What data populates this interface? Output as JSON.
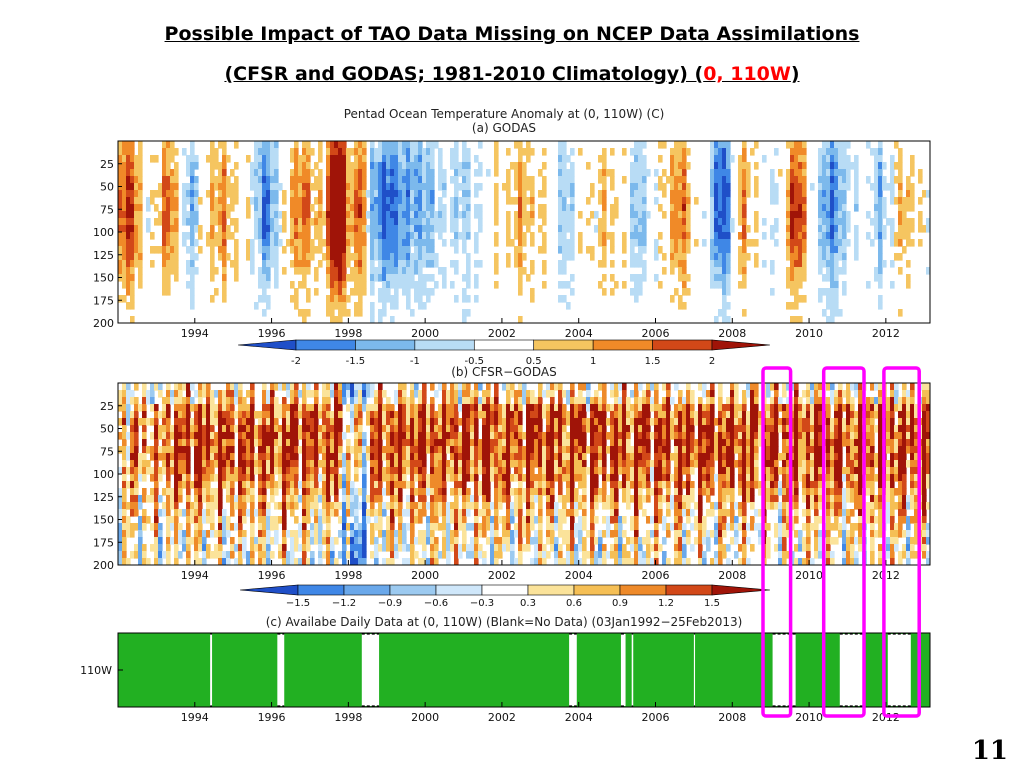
{
  "slide": {
    "title_line1": "Possible Impact of TAO Data Missing on NCEP Data Assimilations",
    "title_line2_prefix": "(CFSR and GODAS; 1981-2010 Climatology) (",
    "title_line2_highlight": "0, 110W",
    "title_line2_suffix": ")",
    "page_number": "11"
  },
  "figure": {
    "title": "Pentad Ocean Temperature Anomaly at (0, 110W) (C)"
  },
  "colors": {
    "highlight": "#ff00ff",
    "available_data": "#22b022",
    "title_accent": "#ff0000"
  },
  "chart_data": [
    {
      "type": "heatmap",
      "title": "(a) GODAS",
      "x_ticks": [
        "1994",
        "1996",
        "1998",
        "2000",
        "2002",
        "2004",
        "2006",
        "2008",
        "2010",
        "2012"
      ],
      "xlim": [
        1992.0,
        2013.15
      ],
      "y_ticks": [
        "25",
        "50",
        "75",
        "100",
        "125",
        "150",
        "175",
        "200"
      ],
      "ylim": [
        0,
        200
      ],
      "y_inverted": true,
      "colorbar_labels": [
        "-2",
        "-1.5",
        "-1",
        "-0.5",
        "0.5",
        "1",
        "1.5",
        "2"
      ],
      "colorbar_colors": [
        "#1f4fc8",
        "#3f87e6",
        "#7cb9ec",
        "#b8dcf5",
        "#ffffff",
        "#f5c560",
        "#f08a28",
        "#d24818",
        "#a01408"
      ],
      "notes": "Alternating warm (El Nino) and cold (La Nina) subsurface anomalies; strongest warm event 1997-1998."
    },
    {
      "type": "heatmap",
      "title": "(b) CFSR−GODAS",
      "x_ticks": [
        "1994",
        "1996",
        "1998",
        "2000",
        "2002",
        "2004",
        "2006",
        "2008",
        "2010",
        "2012"
      ],
      "xlim": [
        1992.0,
        2013.15
      ],
      "y_ticks": [
        "25",
        "50",
        "75",
        "100",
        "125",
        "150",
        "175",
        "200"
      ],
      "ylim": [
        0,
        200
      ],
      "y_inverted": true,
      "colorbar_labels": [
        "−1.5",
        "−1.2",
        "−0.9",
        "−0.6",
        "−0.3",
        "0.3",
        "0.6",
        "0.9",
        "1.2",
        "1.5"
      ],
      "colorbar_colors": [
        "#1f4fc8",
        "#3f87e6",
        "#6aa8ea",
        "#9ccaf0",
        "#cfe7fa",
        "#ffffff",
        "#fbe39a",
        "#f5bf55",
        "#ee8a2a",
        "#d24818",
        "#a01408"
      ]
    },
    {
      "type": "table",
      "title": "(c) Availabe Daily Data at (0, 110W) (Blank=No Data) (03Jan1992−25Feb2013)",
      "y_label": "110W",
      "x_ticks": [
        "1994",
        "1996",
        "1998",
        "2000",
        "2002",
        "2004",
        "2006",
        "2008",
        "2010",
        "2012"
      ],
      "xlim": [
        1992.0,
        2013.15
      ],
      "data_gaps": [
        {
          "start": 1994.4,
          "end": 1994.45
        },
        {
          "start": 1996.15,
          "end": 1996.33
        },
        {
          "start": 1998.35,
          "end": 1998.8
        },
        {
          "start": 2003.75,
          "end": 2003.95
        },
        {
          "start": 2005.1,
          "end": 2005.22
        },
        {
          "start": 2005.38,
          "end": 2005.42
        },
        {
          "start": 2007.0,
          "end": 2007.03
        },
        {
          "start": 2008.8,
          "end": 2008.83
        },
        {
          "start": 2009.05,
          "end": 2009.65
        },
        {
          "start": 2010.8,
          "end": 2011.45
        },
        {
          "start": 2012.05,
          "end": 2012.65
        }
      ]
    }
  ],
  "highlight_boxes": [
    {
      "name": "highlight-box-2009",
      "start": 2008.8,
      "end": 2009.52
    },
    {
      "name": "highlight-box-2011",
      "start": 2010.38,
      "end": 2011.43
    },
    {
      "name": "highlight-box-2012",
      "start": 2011.95,
      "end": 2012.87
    }
  ]
}
